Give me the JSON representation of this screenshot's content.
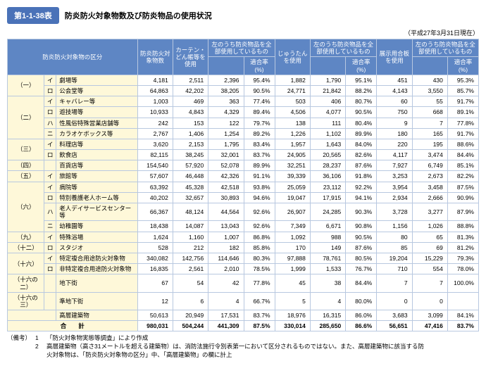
{
  "header": {
    "table_no": "第1-1-38表",
    "title": "防炎防火対象物数及び防炎物品の使用状況",
    "date_note": "（平成27年3月31日現在）"
  },
  "columns": {
    "c0": "防炎防火対象物の区分",
    "c1": "防炎防火対象物数",
    "c2": "カーテン・どん帳等を使用",
    "c3a": "左のうち防炎物品を全部使用しているもの",
    "c3b": "適合率(%)",
    "c4": "じゅうたんを使用",
    "c5a": "左のうち防炎物品を全部使用しているもの",
    "c5b": "適合率(%)",
    "c6": "展示用合板を使用",
    "c7a": "左のうち防炎物品を全部使用しているもの",
    "c7b": "適合率(%)"
  },
  "groups": [
    {
      "g": "（一）",
      "rows": [
        {
          "m": "イ",
          "n": "劇場等",
          "v": [
            "4,181",
            "2,511",
            "2,396",
            "95.4%",
            "1,882",
            "1,790",
            "95.1%",
            "451",
            "430",
            "95.3%"
          ]
        },
        {
          "m": "ロ",
          "n": "公会堂等",
          "v": [
            "64,863",
            "42,202",
            "38,205",
            "90.5%",
            "24,771",
            "21,842",
            "88.2%",
            "4,143",
            "3,550",
            "85.7%"
          ]
        }
      ]
    },
    {
      "g": "（二）",
      "rows": [
        {
          "m": "イ",
          "n": "キャバレー等",
          "v": [
            "1,003",
            "469",
            "363",
            "77.4%",
            "503",
            "406",
            "80.7%",
            "60",
            "55",
            "91.7%"
          ]
        },
        {
          "m": "ロ",
          "n": "遊技場等",
          "v": [
            "10,933",
            "4,843",
            "4,329",
            "89.4%",
            "4,506",
            "4,077",
            "90.5%",
            "750",
            "668",
            "89.1%"
          ]
        },
        {
          "m": "ハ",
          "n": "性風俗特殊営業店舗等",
          "v": [
            "242",
            "153",
            "122",
            "79.7%",
            "138",
            "111",
            "80.4%",
            "9",
            "7",
            "77.8%"
          ]
        },
        {
          "m": "ニ",
          "n": "カラオケボックス等",
          "v": [
            "2,767",
            "1,406",
            "1,254",
            "89.2%",
            "1,226",
            "1,102",
            "89.9%",
            "180",
            "165",
            "91.7%"
          ]
        }
      ]
    },
    {
      "g": "（三）",
      "rows": [
        {
          "m": "イ",
          "n": "料理店等",
          "v": [
            "3,620",
            "2,153",
            "1,795",
            "83.4%",
            "1,957",
            "1,643",
            "84.0%",
            "220",
            "195",
            "88.6%"
          ]
        },
        {
          "m": "ロ",
          "n": "飲食店",
          "v": [
            "82,115",
            "38,245",
            "32,001",
            "83.7%",
            "24,905",
            "20,565",
            "82.6%",
            "4,117",
            "3,474",
            "84.4%"
          ]
        }
      ]
    },
    {
      "g": "（四）",
      "rows": [
        {
          "m": "",
          "n": "百貨店等",
          "v": [
            "154,540",
            "57,920",
            "52,078",
            "89.9%",
            "32,251",
            "28,237",
            "87.6%",
            "7,927",
            "6,749",
            "85.1%"
          ]
        }
      ]
    },
    {
      "g": "（五）",
      "rows": [
        {
          "m": "イ",
          "n": "旅館等",
          "v": [
            "57,607",
            "46,448",
            "42,326",
            "91.1%",
            "39,339",
            "36,106",
            "91.8%",
            "3,253",
            "2,673",
            "82.2%"
          ]
        }
      ]
    },
    {
      "g": "（六）",
      "rows": [
        {
          "m": "イ",
          "n": "病院等",
          "v": [
            "63,392",
            "45,328",
            "42,518",
            "93.8%",
            "25,059",
            "23,112",
            "92.2%",
            "3,954",
            "3,458",
            "87.5%"
          ]
        },
        {
          "m": "ロ",
          "n": "特別養護老人ホーム等",
          "v": [
            "40,202",
            "32,657",
            "30,893",
            "94.6%",
            "19,047",
            "17,915",
            "94.1%",
            "2,934",
            "2,666",
            "90.9%"
          ]
        },
        {
          "m": "ハ",
          "n": "老人デイサービスセンター等",
          "v": [
            "66,367",
            "48,124",
            "44,564",
            "92.6%",
            "26,907",
            "24,285",
            "90.3%",
            "3,728",
            "3,277",
            "87.9%"
          ]
        },
        {
          "m": "ニ",
          "n": "幼稚園等",
          "v": [
            "18,438",
            "14,087",
            "13,043",
            "92.6%",
            "7,349",
            "6,671",
            "90.8%",
            "1,156",
            "1,026",
            "88.8%"
          ]
        }
      ]
    },
    {
      "g": "（九）",
      "rows": [
        {
          "m": "イ",
          "n": "特殊浴場",
          "v": [
            "1,624",
            "1,160",
            "1,007",
            "86.8%",
            "1,092",
            "988",
            "90.5%",
            "80",
            "65",
            "81.3%"
          ]
        }
      ]
    },
    {
      "g": "（十二）",
      "rows": [
        {
          "m": "ロ",
          "n": "スタジオ",
          "v": [
            "528",
            "212",
            "182",
            "85.8%",
            "170",
            "149",
            "87.6%",
            "85",
            "69",
            "81.2%"
          ]
        }
      ]
    },
    {
      "g": "（十六）",
      "rows": [
        {
          "m": "イ",
          "n": "特定複合用途防火対象物",
          "v": [
            "340,082",
            "142,756",
            "114,646",
            "80.3%",
            "97,888",
            "78,761",
            "80.5%",
            "19,204",
            "15,229",
            "79.3%"
          ]
        },
        {
          "m": "ロ",
          "n": "非特定複合用途防火対象物",
          "v": [
            "16,835",
            "2,561",
            "2,010",
            "78.5%",
            "1,999",
            "1,533",
            "76.7%",
            "710",
            "554",
            "78.0%"
          ]
        }
      ]
    },
    {
      "g": "（十六の二）",
      "rows": [
        {
          "m": "",
          "n": "地下街",
          "v": [
            "67",
            "54",
            "42",
            "77.8%",
            "45",
            "38",
            "84.4%",
            "7",
            "7",
            "100.0%"
          ]
        }
      ]
    },
    {
      "g": "（十六の三）",
      "rows": [
        {
          "m": "",
          "n": "準地下街",
          "v": [
            "12",
            "6",
            "4",
            "66.7%",
            "5",
            "4",
            "80.0%",
            "0",
            "0",
            ""
          ]
        }
      ]
    },
    {
      "g": "",
      "rows": [
        {
          "m": "",
          "n": "高層建築物",
          "v": [
            "50,613",
            "20,949",
            "17,531",
            "83.7%",
            "18,976",
            "16,315",
            "86.0%",
            "3,683",
            "3,099",
            "84.1%"
          ]
        }
      ]
    }
  ],
  "total": {
    "label": "合　　計",
    "v": [
      "980,031",
      "504,244",
      "441,309",
      "87.5%",
      "330,014",
      "285,650",
      "86.6%",
      "56,651",
      "47,416",
      "83.7%"
    ]
  },
  "footnotes": {
    "label": "（備考）",
    "n1": "1",
    "t1": "「防火対象物実態等調査」により作成",
    "n2": "2",
    "t2a": "高層建築物（高さ31メートルを超える建築物）は、消防法施行令別表第一において区分されるものではない。また、高層建築物に該当する防",
    "t2b": "火対象物は、「防炎防火対象物の区分」中、「高層建築物」の欄に計上"
  }
}
